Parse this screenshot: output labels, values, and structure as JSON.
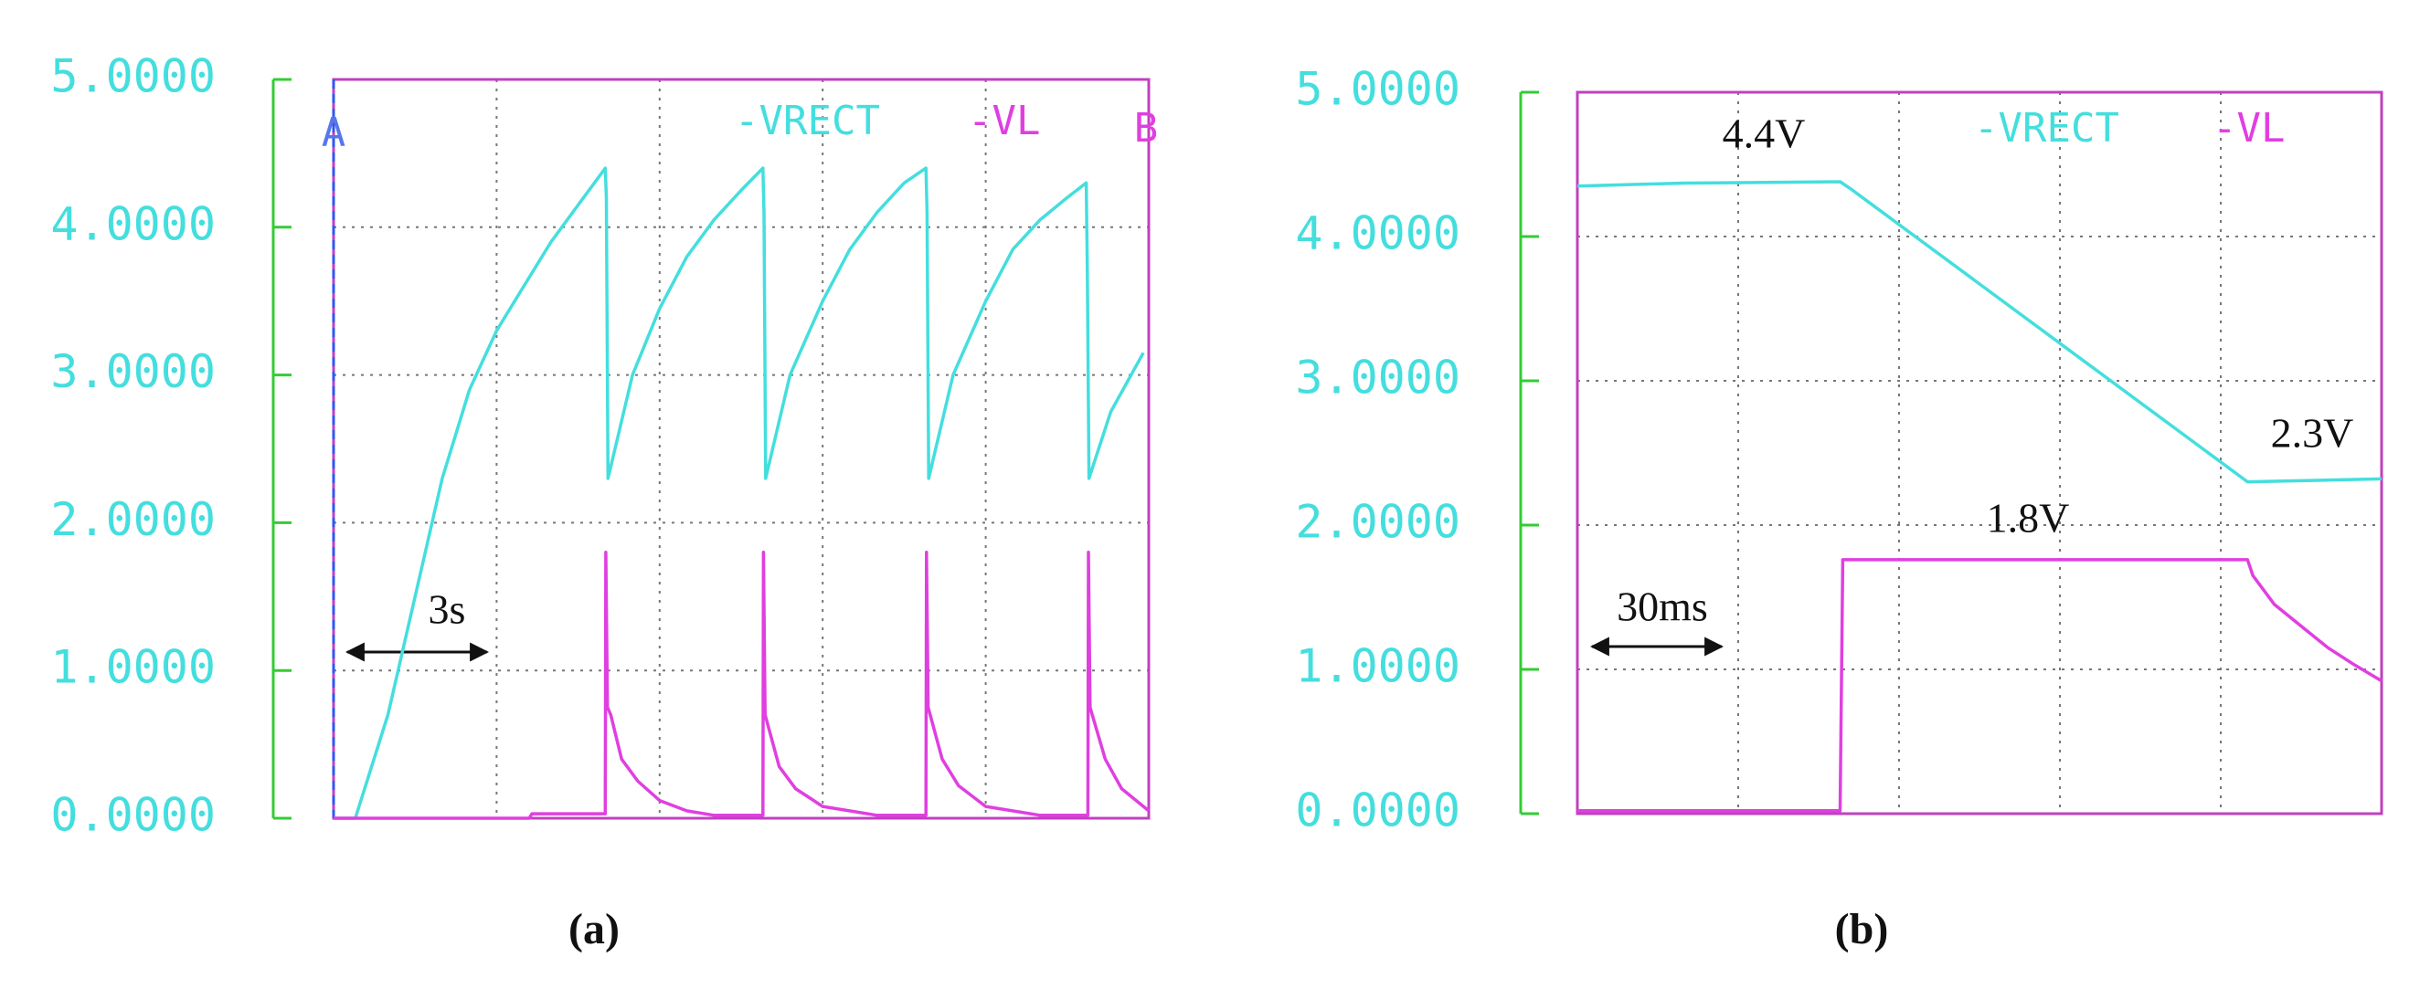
{
  "chart_data": [
    {
      "type": "line",
      "caption": "(a)",
      "grid": true,
      "xlim": [
        0,
        15
      ],
      "xticks": [
        3,
        6,
        9,
        12
      ],
      "ylim": [
        0,
        5
      ],
      "yticks": [
        {
          "value": 0,
          "label": "0.0000"
        },
        {
          "value": 1,
          "label": "1.0000"
        },
        {
          "value": 2,
          "label": "2.0000"
        },
        {
          "value": 3,
          "label": "3.0000"
        },
        {
          "value": 4,
          "label": "4.0000"
        },
        {
          "value": 5,
          "label": "5.0000"
        }
      ],
      "markers": [
        "A",
        "B"
      ],
      "annotations": [
        "3s"
      ],
      "series": [
        {
          "name": "-VRECT",
          "color": "#44dede",
          "x": [
            0,
            0.4,
            1.0,
            1.5,
            2.0,
            2.5,
            3.0,
            3.5,
            4.0,
            4.5,
            5.0,
            5.02,
            5.05,
            5.5,
            6.0,
            6.5,
            7.0,
            7.5,
            7.9,
            7.92,
            7.95,
            8.4,
            9.0,
            9.5,
            10.0,
            10.5,
            10.9,
            10.92,
            10.95,
            11.4,
            12.0,
            12.5,
            13.0,
            13.5,
            13.85,
            13.87,
            13.9,
            14.3,
            14.9
          ],
          "values": [
            0,
            0,
            0.7,
            1.5,
            2.3,
            2.9,
            3.3,
            3.6,
            3.9,
            4.15,
            4.4,
            4.2,
            2.3,
            3.0,
            3.45,
            3.8,
            4.05,
            4.25,
            4.4,
            4.1,
            2.3,
            3.0,
            3.5,
            3.85,
            4.1,
            4.3,
            4.4,
            4.1,
            2.3,
            3.0,
            3.5,
            3.85,
            4.05,
            4.2,
            4.3,
            3.7,
            2.3,
            2.75,
            3.15
          ]
        },
        {
          "name": "-VL",
          "color": "#e03fe0",
          "x": [
            0,
            3.6,
            3.65,
            5.0,
            5.01,
            5.04,
            5.1,
            5.3,
            5.6,
            6.0,
            6.5,
            7.0,
            7.9,
            7.91,
            7.94,
            8.2,
            8.5,
            9.0,
            10.0,
            10.9,
            10.91,
            10.94,
            11.2,
            11.5,
            12.0,
            13.0,
            13.88,
            13.89,
            13.92,
            14.2,
            14.5,
            15.0
          ],
          "values": [
            0,
            0,
            0.03,
            0.03,
            1.8,
            0.75,
            0.7,
            0.4,
            0.25,
            0.12,
            0.05,
            0.02,
            0.02,
            1.8,
            0.7,
            0.35,
            0.2,
            0.08,
            0.02,
            0.02,
            1.8,
            0.75,
            0.4,
            0.22,
            0.08,
            0.02,
            0.02,
            1.8,
            0.75,
            0.4,
            0.2,
            0.05
          ]
        }
      ]
    },
    {
      "type": "line",
      "caption": "(b)",
      "grid": true,
      "xlim": [
        0,
        150
      ],
      "xticks": [
        30,
        60,
        90,
        120
      ],
      "ylim": [
        0,
        5
      ],
      "yticks": [
        {
          "value": 0,
          "label": "0.0000"
        },
        {
          "value": 1,
          "label": "1.0000"
        },
        {
          "value": 2,
          "label": "2.0000"
        },
        {
          "value": 3,
          "label": "3.0000"
        },
        {
          "value": 4,
          "label": "4.0000"
        },
        {
          "value": 5,
          "label": "5.0000"
        }
      ],
      "annotations": [
        "30ms",
        "4.4V",
        "2.3V",
        "1.8V"
      ],
      "series": [
        {
          "name": "-VRECT",
          "color": "#44dede",
          "x": [
            0,
            20,
            49,
            51,
            125,
            150
          ],
          "values": [
            4.35,
            4.37,
            4.38,
            4.33,
            2.3,
            2.32
          ]
        },
        {
          "name": "-VL",
          "color": "#e03fe0",
          "x": [
            0,
            49,
            49.5,
            125,
            126,
            130,
            135,
            140,
            145,
            150
          ],
          "values": [
            0.02,
            0.02,
            1.76,
            1.76,
            1.65,
            1.45,
            1.3,
            1.15,
            1.03,
            0.92
          ]
        }
      ]
    }
  ]
}
